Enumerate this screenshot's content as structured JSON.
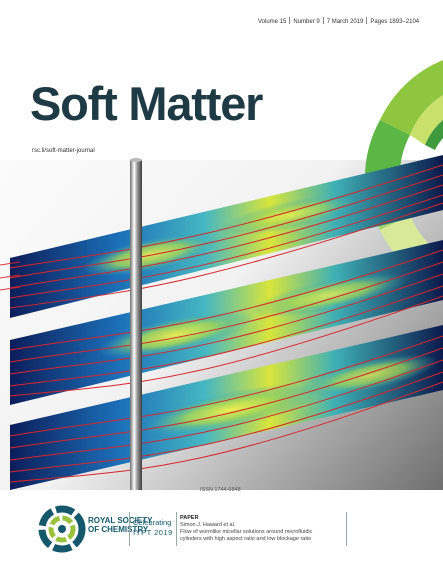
{
  "issue": {
    "volume": "Volume 15",
    "number": "Number 9",
    "date": "7 March 2019",
    "pages": "Pages 1893–2104"
  },
  "journal": {
    "title": "Soft Matter",
    "url": "rsc.li/soft-matter-journal"
  },
  "issn": "ISSN 1744-6848",
  "publisher": {
    "logo_line1": "ROYAL SOCIETY",
    "logo_line2": "OF CHEMISTRY",
    "celebrating_line1": "Celebrating",
    "celebrating_line2": "IYPT 2019"
  },
  "paper": {
    "label": "PAPER",
    "authors": "Simon J. Haward et al.",
    "title_line1": "Flow of wormlike micellar solutions around microfluidic",
    "title_line2": "cylinders with high aspect ratio and low blockage ratio"
  },
  "colors": {
    "title": "#1e3a44",
    "rsc_teal": "#15586b",
    "streamline": "#d8262a"
  }
}
